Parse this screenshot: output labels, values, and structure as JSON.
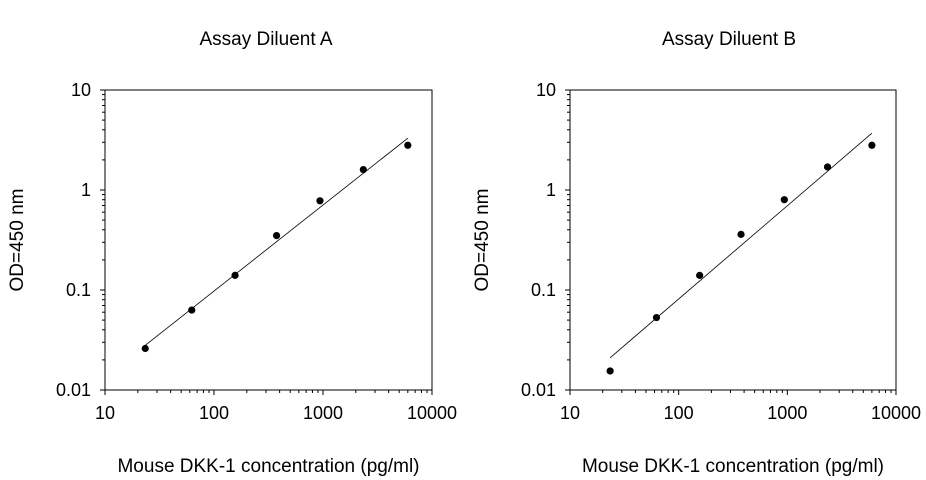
{
  "chart_data": [
    {
      "type": "scatter",
      "title": "Assay Diluent A",
      "xlabel": "Mouse DKK-1 concentration (pg/ml)",
      "ylabel": "OD=450 nm",
      "xscale": "log",
      "yscale": "log",
      "xlim": [
        10,
        10000
      ],
      "ylim": [
        0.01,
        10
      ],
      "xticks": [
        "10",
        "100",
        "1000",
        "10000"
      ],
      "yticks": [
        "0.01",
        "0.1",
        "1",
        "10"
      ],
      "grid": false,
      "series": [
        {
          "x": [
            23.4,
            62.5,
            156,
            375,
            938,
            2344,
            6000
          ],
          "y": [
            0.026,
            0.063,
            0.14,
            0.35,
            0.78,
            1.6,
            2.8
          ]
        }
      ],
      "trendline": {
        "x": [
          23.4,
          6000
        ],
        "y": [
          0.028,
          3.3
        ]
      }
    },
    {
      "type": "scatter",
      "title": "Assay Diluent B",
      "xlabel": "Mouse DKK-1 concentration (pg/ml)",
      "ylabel": "OD=450 nm",
      "xscale": "log",
      "yscale": "log",
      "xlim": [
        10,
        10000
      ],
      "ylim": [
        0.01,
        10
      ],
      "xticks": [
        "10",
        "100",
        "1000",
        "10000"
      ],
      "yticks": [
        "0.01",
        "0.1",
        "1",
        "10"
      ],
      "grid": false,
      "series": [
        {
          "x": [
            23.4,
            62.5,
            156,
            375,
            938,
            2344,
            6000
          ],
          "y": [
            0.0155,
            0.053,
            0.14,
            0.36,
            0.8,
            1.7,
            2.8
          ]
        }
      ],
      "trendline": {
        "x": [
          23.4,
          6000
        ],
        "y": [
          0.021,
          3.7
        ]
      }
    }
  ]
}
